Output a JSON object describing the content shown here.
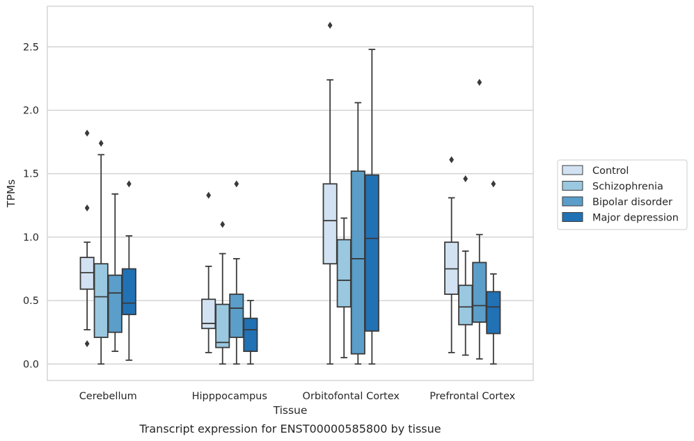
{
  "caption": "Transcript expression for ENST00000585800 by tissue",
  "chart_data": {
    "type": "box",
    "xlabel": "Tissue",
    "ylabel": "TPMs",
    "ylim": [
      -0.13,
      2.82
    ],
    "yticks": [
      "0.0",
      "0.5",
      "1.0",
      "1.5",
      "2.0",
      "2.5"
    ],
    "grid": "horizontal",
    "legend_position": "right",
    "categories": [
      "Cerebellum",
      "Hipppocampus",
      "Orbitofontal Cortex",
      "Prefrontal Cortex"
    ],
    "series": [
      {
        "name": "Control",
        "color": "#d2e2f2",
        "boxes": [
          {
            "whislo": 0.27,
            "q1": 0.59,
            "med": 0.72,
            "q3": 0.84,
            "whishi": 0.96,
            "fliers": [
              1.82,
              1.23,
              0.16
            ]
          },
          {
            "whislo": 0.09,
            "q1": 0.28,
            "med": 0.32,
            "q3": 0.51,
            "whishi": 0.77,
            "fliers": [
              1.33
            ]
          },
          {
            "whislo": 0.0,
            "q1": 0.79,
            "med": 1.13,
            "q3": 1.42,
            "whishi": 2.24,
            "fliers": [
              2.67
            ]
          },
          {
            "whislo": 0.09,
            "q1": 0.55,
            "med": 0.75,
            "q3": 0.96,
            "whishi": 1.31,
            "fliers": [
              1.61
            ]
          }
        ]
      },
      {
        "name": "Schizophrenia",
        "color": "#9ac8e0",
        "boxes": [
          {
            "whislo": 0.0,
            "q1": 0.21,
            "med": 0.53,
            "q3": 0.79,
            "whishi": 1.65,
            "fliers": [
              1.74
            ]
          },
          {
            "whislo": 0.0,
            "q1": 0.13,
            "med": 0.17,
            "q3": 0.47,
            "whishi": 0.87,
            "fliers": [
              1.1
            ]
          },
          {
            "whislo": 0.05,
            "q1": 0.45,
            "med": 0.66,
            "q3": 0.98,
            "whishi": 1.15,
            "fliers": []
          },
          {
            "whislo": 0.07,
            "q1": 0.31,
            "med": 0.45,
            "q3": 0.62,
            "whishi": 0.89,
            "fliers": [
              1.46
            ]
          }
        ]
      },
      {
        "name": "Bipolar disorder",
        "color": "#5a9ec9",
        "boxes": [
          {
            "whislo": 0.1,
            "q1": 0.25,
            "med": 0.56,
            "q3": 0.7,
            "whishi": 1.34,
            "fliers": []
          },
          {
            "whislo": 0.0,
            "q1": 0.21,
            "med": 0.44,
            "q3": 0.55,
            "whishi": 0.83,
            "fliers": [
              1.42
            ]
          },
          {
            "whislo": 0.0,
            "q1": 0.08,
            "med": 0.83,
            "q3": 1.52,
            "whishi": 2.06,
            "fliers": []
          },
          {
            "whislo": 0.04,
            "q1": 0.33,
            "med": 0.46,
            "q3": 0.8,
            "whishi": 1.02,
            "fliers": [
              2.22
            ]
          }
        ]
      },
      {
        "name": "Major depression",
        "color": "#2171b5",
        "boxes": [
          {
            "whislo": 0.03,
            "q1": 0.39,
            "med": 0.48,
            "q3": 0.75,
            "whishi": 1.01,
            "fliers": [
              1.42
            ]
          },
          {
            "whislo": 0.0,
            "q1": 0.1,
            "med": 0.27,
            "q3": 0.36,
            "whishi": 0.5,
            "fliers": []
          },
          {
            "whislo": 0.0,
            "q1": 0.26,
            "med": 0.99,
            "q3": 1.49,
            "whishi": 2.48,
            "fliers": []
          },
          {
            "whislo": 0.0,
            "q1": 0.24,
            "med": 0.45,
            "q3": 0.57,
            "whishi": 0.71,
            "fliers": [
              1.42
            ]
          }
        ]
      }
    ]
  }
}
